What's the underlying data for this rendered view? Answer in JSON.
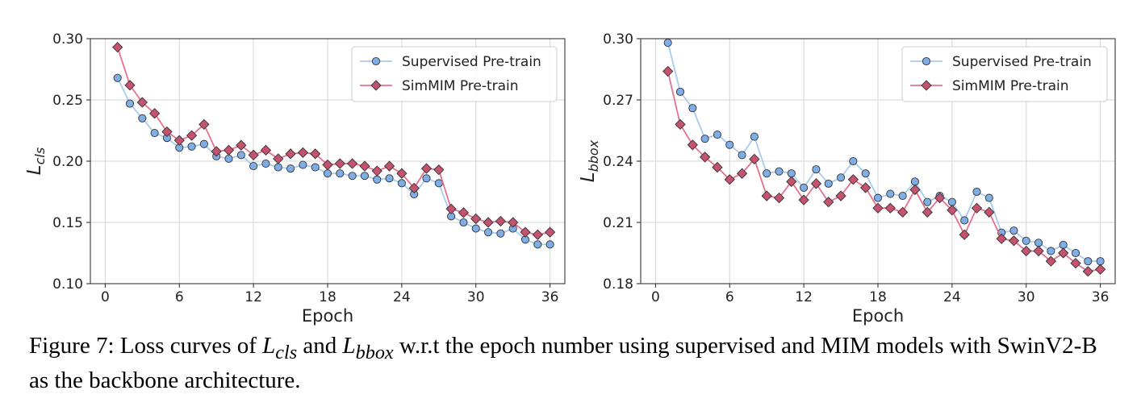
{
  "chart_data": [
    {
      "type": "line",
      "xlabel": "Epoch",
      "ylabel": "L_cls",
      "ylabel_main": "L",
      "ylabel_sub": "cls",
      "xlim": [
        -1.2,
        37.2
      ],
      "ylim": [
        0.1,
        0.3
      ],
      "xticks": [
        0,
        6,
        12,
        18,
        24,
        30,
        36
      ],
      "yticks": [
        0.1,
        0.15,
        0.2,
        0.25,
        0.3
      ],
      "ytick_labels": [
        "0.10",
        "0.15",
        "0.20",
        "0.25",
        "0.30"
      ],
      "grid": true,
      "legend_position": "top-right",
      "x": [
        1,
        2,
        3,
        4,
        5,
        6,
        7,
        8,
        9,
        10,
        11,
        12,
        13,
        14,
        15,
        16,
        17,
        18,
        19,
        20,
        21,
        22,
        23,
        24,
        25,
        26,
        27,
        28,
        29,
        30,
        31,
        32,
        33,
        34,
        35,
        36
      ],
      "series": [
        {
          "name": "Supervised Pre-train",
          "marker": "circle",
          "line_color": "#a9cbee",
          "marker_color": "#7faee6",
          "values": [
            0.268,
            0.247,
            0.235,
            0.223,
            0.219,
            0.211,
            0.212,
            0.214,
            0.204,
            0.202,
            0.205,
            0.196,
            0.198,
            0.195,
            0.194,
            0.197,
            0.195,
            0.19,
            0.19,
            0.188,
            0.188,
            0.185,
            0.186,
            0.182,
            0.173,
            0.186,
            0.182,
            0.155,
            0.15,
            0.145,
            0.142,
            0.141,
            0.145,
            0.136,
            0.132,
            0.132
          ]
        },
        {
          "name": "SimMIM Pre-train",
          "marker": "diamond",
          "line_color": "#e7708d",
          "marker_color": "#c5536f",
          "values": [
            0.293,
            0.262,
            0.248,
            0.239,
            0.224,
            0.217,
            0.221,
            0.23,
            0.208,
            0.209,
            0.213,
            0.205,
            0.209,
            0.202,
            0.206,
            0.207,
            0.206,
            0.197,
            0.198,
            0.198,
            0.196,
            0.192,
            0.196,
            0.19,
            0.178,
            0.194,
            0.193,
            0.161,
            0.158,
            0.153,
            0.15,
            0.151,
            0.15,
            0.142,
            0.14,
            0.142
          ]
        }
      ]
    },
    {
      "type": "line",
      "xlabel": "Epoch",
      "ylabel": "L_bbox",
      "ylabel_main": "L",
      "ylabel_sub": "bbox",
      "xlim": [
        -1.2,
        37.2
      ],
      "ylim": [
        0.18,
        0.3
      ],
      "xticks": [
        0,
        6,
        12,
        18,
        24,
        30,
        36
      ],
      "yticks": [
        0.18,
        0.21,
        0.24,
        0.27,
        0.3
      ],
      "ytick_labels": [
        "0.18",
        "0.21",
        "0.24",
        "0.27",
        "0.30"
      ],
      "grid": true,
      "legend_position": "top-right",
      "x": [
        1,
        2,
        3,
        4,
        5,
        6,
        7,
        8,
        9,
        10,
        11,
        12,
        13,
        14,
        15,
        16,
        17,
        18,
        19,
        20,
        21,
        22,
        23,
        24,
        25,
        26,
        27,
        28,
        29,
        30,
        31,
        32,
        33,
        34,
        35,
        36
      ],
      "series": [
        {
          "name": "Supervised Pre-train",
          "marker": "circle",
          "line_color": "#a9cbee",
          "marker_color": "#7faee6",
          "values": [
            0.298,
            0.274,
            0.266,
            0.251,
            0.253,
            0.248,
            0.243,
            0.252,
            0.234,
            0.235,
            0.234,
            0.227,
            0.236,
            0.229,
            0.232,
            0.24,
            0.234,
            0.222,
            0.224,
            0.223,
            0.23,
            0.22,
            0.223,
            0.22,
            0.211,
            0.225,
            0.222,
            0.205,
            0.206,
            0.201,
            0.2,
            0.196,
            0.199,
            0.195,
            0.191,
            0.191
          ]
        },
        {
          "name": "SimMIM Pre-train",
          "marker": "diamond",
          "line_color": "#e7708d",
          "marker_color": "#c5536f",
          "values": [
            0.284,
            0.258,
            0.248,
            0.242,
            0.237,
            0.231,
            0.234,
            0.241,
            0.223,
            0.222,
            0.23,
            0.221,
            0.229,
            0.22,
            0.223,
            0.231,
            0.227,
            0.217,
            0.217,
            0.215,
            0.226,
            0.215,
            0.222,
            0.216,
            0.204,
            0.217,
            0.215,
            0.202,
            0.201,
            0.196,
            0.196,
            0.191,
            0.195,
            0.19,
            0.186,
            0.187
          ]
        }
      ]
    }
  ],
  "caption": {
    "prefix": "Figure 7: Loss curves of ",
    "term1_main": "L",
    "term1_sub": "cls",
    "mid": " and ",
    "term2_main": "L",
    "term2_sub": "bbox",
    "suffix": " w.r.t the epoch number using supervised and MIM models with SwinV2-B as the backbone architecture."
  }
}
